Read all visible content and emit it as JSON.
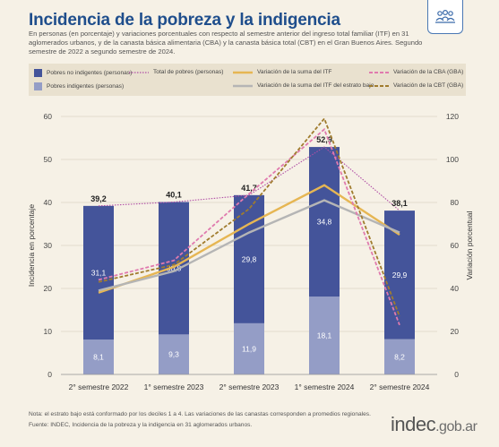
{
  "header": {
    "title": "Incidencia de la pobreza y la indigencia",
    "subtitle": "En personas (en porcentaje) y variaciones porcentuales con respecto al semestre anterior del ingreso total familiar (ITF) en 31 aglomerados urbanos, y de la canasta básica alimentaria (CBA) y la canasta básica total (CBT) en el Gran Buenos Aires. Segundo semestre de 2022 a segundo semestre de 2024."
  },
  "logo_icon": "people-group-icon",
  "legend": {
    "pobres_no_indigentes": "Pobres no indigentes (personas)",
    "pobres_indigentes": "Pobres indigentes (personas)",
    "total_pobres": "Total de pobres (personas)",
    "var_itf": "Variación de la suma del ITF",
    "var_itf_bajo": "Variación de la suma del ITF del estrato bajo",
    "var_cba": "Variación de la CBA (GBA)",
    "var_cbt": "Variación de la CBT (GBA)"
  },
  "colors": {
    "no_indigentes": "#44549a",
    "indigentes": "#949dc6",
    "total": "#b14fa6",
    "itf": "#e6b653",
    "itf_bajo": "#b5b5b5",
    "cba": "#e07aae",
    "cbt": "#a07c2e"
  },
  "chart_data": {
    "type": "bar",
    "categories": [
      "2° semestre 2022",
      "1° semestre 2023",
      "2° semestre 2023",
      "1° semestre 2024",
      "2° semestre 2024"
    ],
    "series": [
      {
        "name": "Pobres indigentes (personas)",
        "values": [
          8.1,
          9.3,
          11.9,
          18.1,
          8.2
        ]
      },
      {
        "name": "Pobres no indigentes (personas)",
        "values": [
          31.1,
          30.8,
          29.8,
          34.8,
          29.9
        ]
      }
    ],
    "totals_name": "Total de pobres (personas)",
    "totals": [
      39.2,
      40.1,
      41.7,
      52.9,
      38.1
    ],
    "totals_labels": [
      "39,2",
      "40,1",
      "41,7",
      "52,9",
      "38,1"
    ],
    "indigentes_labels": [
      "8,1",
      "9,3",
      "11,9",
      "18,1",
      "8,2"
    ],
    "no_indigentes_labels": [
      "31,1",
      "30,8",
      "29,8",
      "34,8",
      "29,9"
    ],
    "line_series": [
      {
        "name": "Variación de la suma del ITF",
        "values": [
          38,
          50,
          70,
          88,
          65
        ]
      },
      {
        "name": "Variación de la suma del ITF del estrato bajo",
        "values": [
          39,
          48,
          66,
          81,
          66
        ]
      },
      {
        "name": "Variación de la CBA (GBA)",
        "values": [
          44,
          53,
          84,
          114,
          23
        ]
      },
      {
        "name": "Variación de la CBT (GBA)",
        "values": [
          43,
          51,
          77,
          119,
          27
        ]
      }
    ],
    "ylabel": "Incidencia en porcentaje",
    "y2label": "Variación porcentual",
    "ylim": [
      0,
      60
    ],
    "y2lim": [
      0,
      120
    ],
    "yticks": [
      0,
      10,
      20,
      30,
      40,
      50,
      60
    ],
    "y2ticks": [
      0,
      20,
      40,
      60,
      80,
      100,
      120
    ],
    "grid": true,
    "legend_position": "top"
  },
  "footer": {
    "note": "Nota: el estrato bajo está conformado por los deciles 1 a 4. Las variaciones de las canastas corresponden a promedios regionales.",
    "source": "Fuente: INDEC, Incidencia de la pobreza y la indigencia en 31 aglomerados urbanos.",
    "brand_main": "indec",
    "brand_domain": ".gob.ar"
  }
}
